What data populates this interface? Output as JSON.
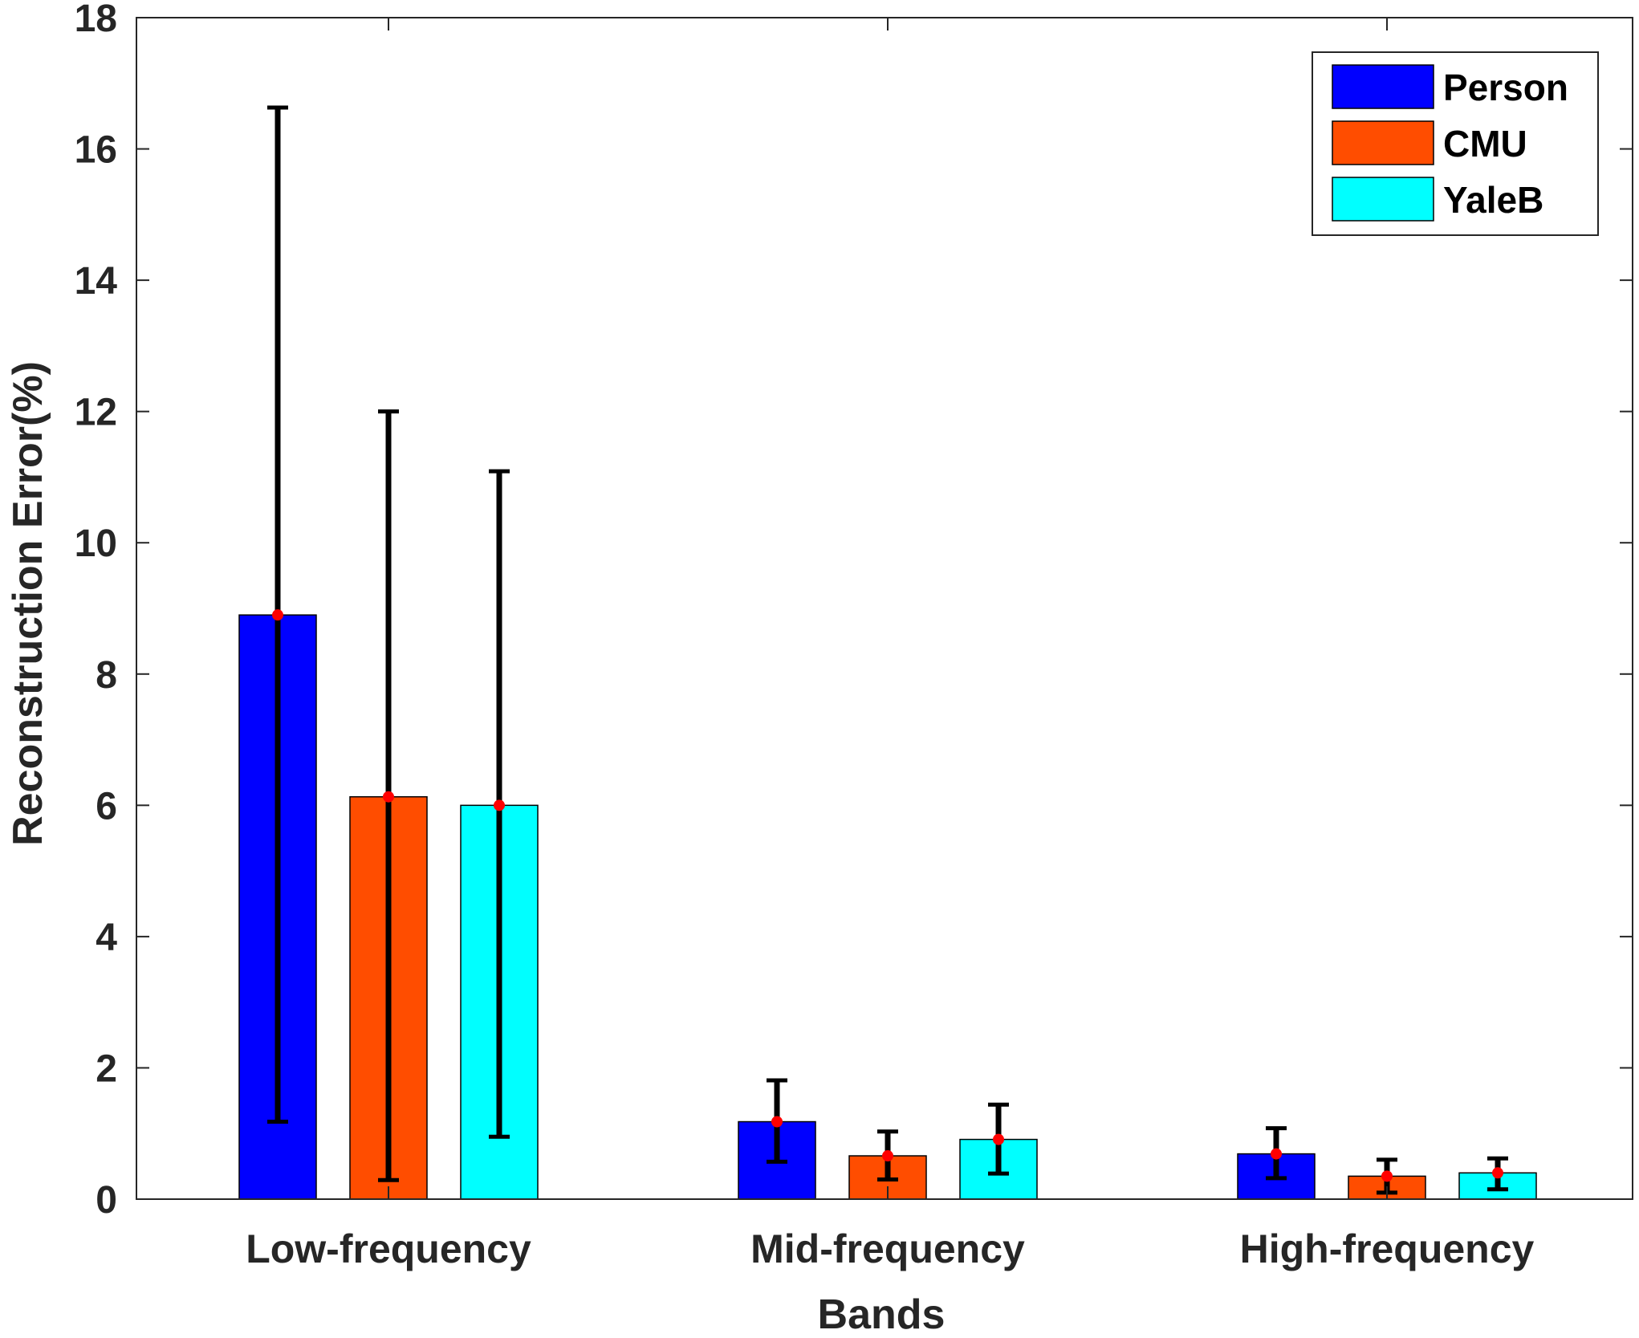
{
  "chart_data": {
    "type": "bar",
    "title": "",
    "xlabel": "Bands",
    "ylabel": "Reconstruction Error(%)",
    "ylim": [
      0,
      18
    ],
    "yticks": [
      0,
      2,
      4,
      6,
      8,
      10,
      12,
      14,
      16,
      18
    ],
    "categories": [
      "Low-frequency",
      "Mid-frequency",
      "High-frequency"
    ],
    "legend_position": "top-right",
    "grid": false,
    "series": [
      {
        "name": "Person",
        "color": "#0000ff",
        "values": [
          8.9,
          1.18,
          0.69
        ],
        "error_low": [
          1.18,
          0.57,
          0.32
        ],
        "error_high": [
          16.63,
          1.81,
          1.08
        ]
      },
      {
        "name": "CMU",
        "color": "#ff4d00",
        "values": [
          6.13,
          0.66,
          0.35
        ],
        "error_low": [
          0.29,
          0.3,
          0.1
        ],
        "error_high": [
          12.0,
          1.03,
          0.6
        ]
      },
      {
        "name": "YaleB",
        "color": "#00ffff",
        "values": [
          6.0,
          0.91,
          0.4
        ],
        "error_low": [
          0.95,
          0.39,
          0.15
        ],
        "error_high": [
          11.09,
          1.44,
          0.62
        ]
      }
    ]
  }
}
